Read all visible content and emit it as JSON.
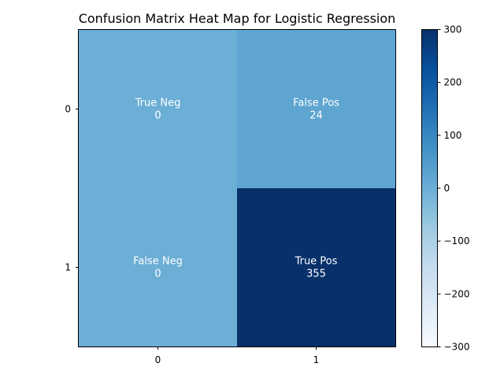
{
  "chart_data": {
    "type": "heatmap",
    "title": "Confusion Matrix Heat Map for Logistic Regression",
    "xlabel": "",
    "ylabel": "",
    "x_categories": [
      "0",
      "1"
    ],
    "y_categories": [
      "0",
      "1"
    ],
    "cells": [
      {
        "row": 0,
        "col": 0,
        "label": "True Neg",
        "value": 0
      },
      {
        "row": 0,
        "col": 1,
        "label": "False Pos",
        "value": 24
      },
      {
        "row": 1,
        "col": 0,
        "label": "False Neg",
        "value": 0
      },
      {
        "row": 1,
        "col": 1,
        "label": "True Pos",
        "value": 355
      }
    ],
    "colormap": "Blues",
    "colorbar": {
      "vmin": -300,
      "vmax": 300,
      "ticks": [
        300,
        200,
        100,
        0,
        -100,
        -200,
        -300
      ],
      "tick_labels": [
        "300",
        "200",
        "100",
        "0",
        "−100",
        "−200",
        "−300"
      ]
    },
    "grid": false
  }
}
